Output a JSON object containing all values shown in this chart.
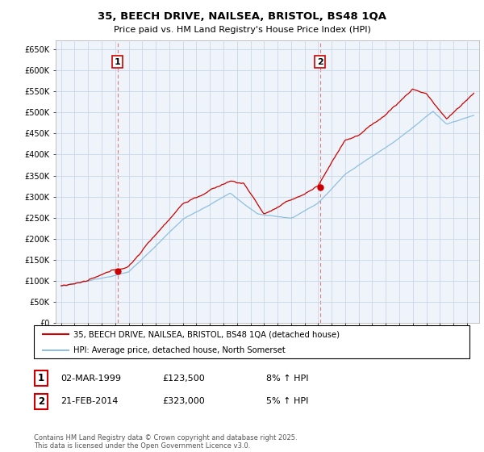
{
  "title": "35, BEECH DRIVE, NAILSEA, BRISTOL, BS48 1QA",
  "subtitle": "Price paid vs. HM Land Registry's House Price Index (HPI)",
  "legend_line1": "35, BEECH DRIVE, NAILSEA, BRISTOL, BS48 1QA (detached house)",
  "legend_line2": "HPI: Average price, detached house, North Somerset",
  "transaction1_date": "02-MAR-1999",
  "transaction1_price": "£123,500",
  "transaction1_hpi": "8% ↑ HPI",
  "transaction2_date": "21-FEB-2014",
  "transaction2_price": "£323,000",
  "transaction2_hpi": "5% ↑ HPI",
  "footer": "Contains HM Land Registry data © Crown copyright and database right 2025.\nThis data is licensed under the Open Government Licence v3.0.",
  "hpi_color": "#90bfe0",
  "price_color": "#cc0000",
  "vline_color": "#dd6666",
  "chart_bg": "#eef4fa",
  "background_color": "#ffffff",
  "grid_color": "#c8d8e8",
  "ylim": [
    0,
    670000
  ],
  "yticks": [
    0,
    50000,
    100000,
    150000,
    200000,
    250000,
    300000,
    350000,
    400000,
    450000,
    500000,
    550000,
    600000,
    650000
  ],
  "transaction1_x": 1999.17,
  "transaction1_y": 123500,
  "transaction2_x": 2014.13,
  "transaction2_y": 323000,
  "xlim_min": 1994.6,
  "xlim_max": 2025.9
}
